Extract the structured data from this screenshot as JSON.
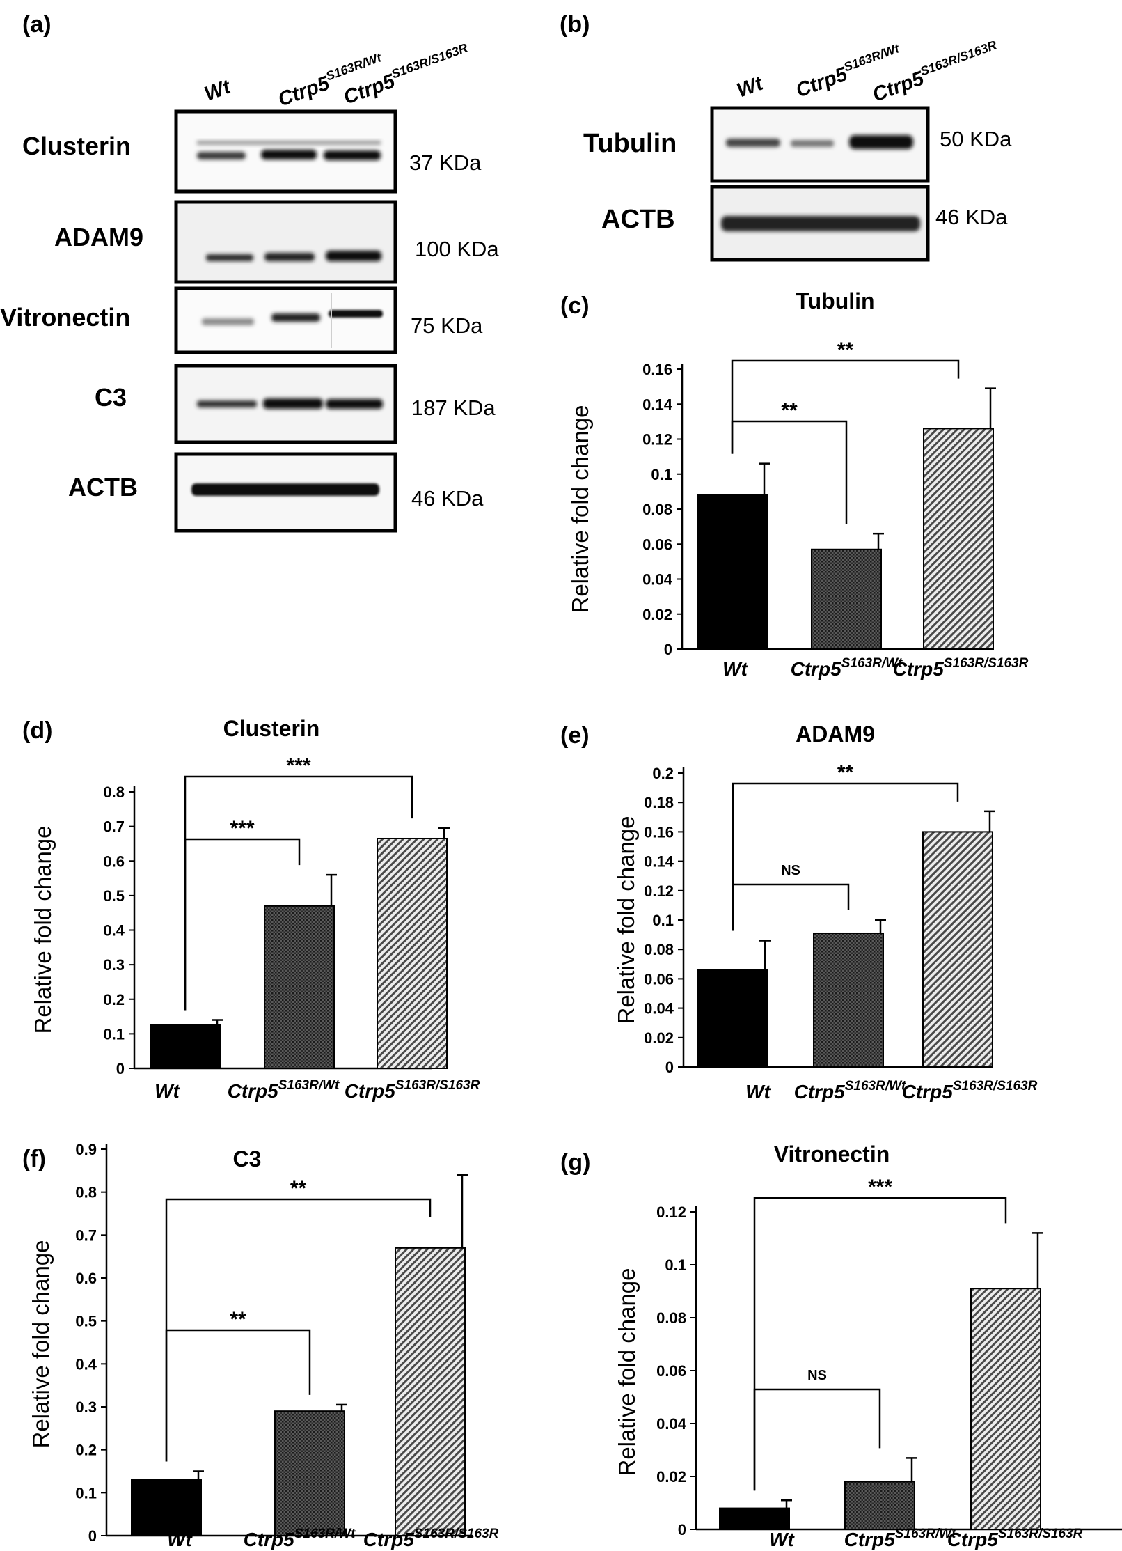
{
  "blot_a": {
    "panel_label": "(a)",
    "lanes": [
      {
        "main": "Wt",
        "sup": ""
      },
      {
        "main": "Ctrp5",
        "sup": "S163R/Wt"
      },
      {
        "main": "Ctrp5",
        "sup": "S163R/S163R"
      }
    ],
    "rows": [
      {
        "protein": "Clusterin",
        "kda": "37 KDa"
      },
      {
        "protein": "ADAM9",
        "kda": "100 KDa"
      },
      {
        "protein": "Vitronectin",
        "kda": "75 KDa"
      },
      {
        "protein": "C3",
        "kda": "187 KDa"
      },
      {
        "protein": "ACTB",
        "kda": "46 KDa"
      }
    ]
  },
  "blot_b": {
    "panel_label": "(b)",
    "lanes": [
      {
        "main": "Wt",
        "sup": ""
      },
      {
        "main": "Ctrp5",
        "sup": "S163R/Wt"
      },
      {
        "main": "Ctrp5",
        "sup": "S163R/S163R"
      }
    ],
    "rows": [
      {
        "protein": "Tubulin",
        "kda": "50 KDa"
      },
      {
        "protein": "ACTB",
        "kda": "46 KDa"
      }
    ]
  },
  "chart_data": [
    {
      "panel": "(c)",
      "type": "bar",
      "title": "Tubulin",
      "ylabel": "Relative fold change",
      "categories": [
        {
          "main": "Wt",
          "sup": ""
        },
        {
          "main": "Ctrp5",
          "sup": "S163R/Wt"
        },
        {
          "main": "Ctrp5",
          "sup": "S163R/S163R"
        }
      ],
      "values": [
        0.088,
        0.057,
        0.126
      ],
      "errors": [
        0.018,
        0.009,
        0.023
      ],
      "ylim": [
        0,
        0.16
      ],
      "yticks": [
        "0",
        "0.02",
        "0.04",
        "0.06",
        "0.08",
        "0.1",
        "0.12",
        "0.14",
        "0.16"
      ],
      "fills": [
        "#000000",
        "dots",
        "hatch"
      ],
      "significance": [
        {
          "from": 0,
          "to": 1,
          "label": "**"
        },
        {
          "from": 0,
          "to": 2,
          "label": "**"
        }
      ]
    },
    {
      "panel": "(d)",
      "type": "bar",
      "title": "Clusterin",
      "ylabel": "Relative fold change",
      "categories": [
        {
          "main": "Wt",
          "sup": ""
        },
        {
          "main": "Ctrp5",
          "sup": "S163R/Wt"
        },
        {
          "main": "Ctrp5",
          "sup": "S163R/S163R"
        }
      ],
      "values": [
        0.125,
        0.47,
        0.665
      ],
      "errors": [
        0.015,
        0.09,
        0.03
      ],
      "ylim": [
        0,
        0.8
      ],
      "yticks": [
        "0",
        "0.1",
        "0.2",
        "0.3",
        "0.4",
        "0.5",
        "0.6",
        "0.7",
        "0.8"
      ],
      "fills": [
        "#000000",
        "dots",
        "hatch"
      ],
      "significance": [
        {
          "from": 0,
          "to": 1,
          "label": "***"
        },
        {
          "from": 0,
          "to": 2,
          "label": "***"
        }
      ]
    },
    {
      "panel": "(e)",
      "type": "bar",
      "title": "ADAM9",
      "ylabel": "Relative fold change",
      "categories": [
        {
          "main": "Wt",
          "sup": ""
        },
        {
          "main": "Ctrp5",
          "sup": "S163R/Wt"
        },
        {
          "main": "Ctrp5",
          "sup": "S163R/S163R"
        }
      ],
      "values": [
        0.066,
        0.091,
        0.16
      ],
      "errors": [
        0.02,
        0.009,
        0.014
      ],
      "ylim": [
        0,
        0.2
      ],
      "yticks": [
        "0",
        "0.02",
        "0.04",
        "0.06",
        "0.08",
        "0.1",
        "0.12",
        "0.14",
        "0.16",
        "0.18",
        "0.2"
      ],
      "fills": [
        "#000000",
        "dots",
        "hatch"
      ],
      "significance": [
        {
          "from": 0,
          "to": 1,
          "label": "NS"
        },
        {
          "from": 0,
          "to": 2,
          "label": "**"
        }
      ]
    },
    {
      "panel": "(f)",
      "type": "bar",
      "title": "C3",
      "ylabel": "Relative fold change",
      "categories": [
        {
          "main": "Wt",
          "sup": ""
        },
        {
          "main": "Ctrp5",
          "sup": "S163R/Wt"
        },
        {
          "main": "Ctrp5",
          "sup": "S163R/S163R"
        }
      ],
      "values": [
        0.13,
        0.29,
        0.67
      ],
      "errors": [
        0.02,
        0.015,
        0.17
      ],
      "ylim": [
        0,
        0.9
      ],
      "yticks": [
        "0",
        "0.1",
        "0.2",
        "0.3",
        "0.4",
        "0.5",
        "0.6",
        "0.7",
        "0.8",
        "0.9"
      ],
      "fills": [
        "#000000",
        "dots",
        "hatch"
      ],
      "significance": [
        {
          "from": 0,
          "to": 1,
          "label": "**"
        },
        {
          "from": 0,
          "to": 2,
          "label": "**"
        }
      ]
    },
    {
      "panel": "(g)",
      "type": "bar",
      "title": "Vitronectin",
      "ylabel": "Relative fold change",
      "categories": [
        {
          "main": "Wt",
          "sup": ""
        },
        {
          "main": "Ctrp5",
          "sup": "S163R/Wt"
        },
        {
          "main": "Ctrp5",
          "sup": "S163R/S163R"
        }
      ],
      "values": [
        0.008,
        0.018,
        0.091
      ],
      "errors": [
        0.003,
        0.009,
        0.021
      ],
      "ylim": [
        0,
        0.12
      ],
      "yticks": [
        "0",
        "0.02",
        "0.04",
        "0.06",
        "0.08",
        "0.1",
        "0.12"
      ],
      "fills": [
        "#000000",
        "dots",
        "hatch"
      ],
      "significance": [
        {
          "from": 0,
          "to": 1,
          "label": "NS"
        },
        {
          "from": 0,
          "to": 2,
          "label": "***"
        }
      ]
    }
  ]
}
